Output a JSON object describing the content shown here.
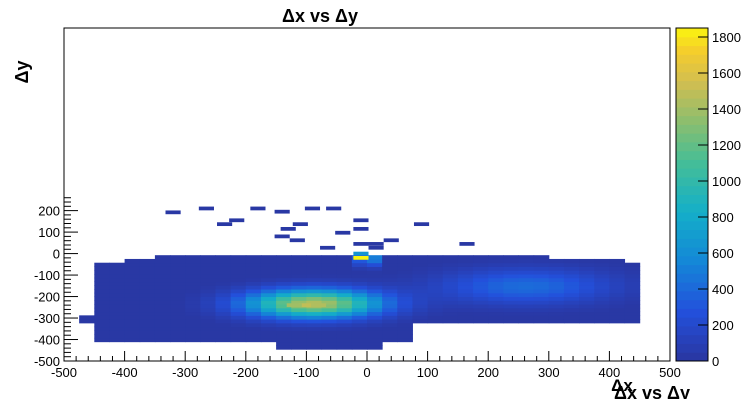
{
  "chart_data": {
    "type": "heatmap",
    "title": "Δx vs Δy",
    "xlabel": "Δx vs Δy",
    "xlabel_overlap": "Δx",
    "ylabel": "Δy",
    "xlim": [
      -500,
      500
    ],
    "ylim": [
      -500,
      1050
    ],
    "x_ticks": [
      -500,
      -400,
      -300,
      -200,
      -100,
      0,
      100,
      200,
      300,
      400,
      500
    ],
    "y_ticks": [
      -500,
      -400,
      -300,
      -200,
      -100,
      0,
      100,
      200
    ],
    "colorbar": {
      "min": 0,
      "max": 1850,
      "ticks": [
        0,
        200,
        400,
        600,
        800,
        1000,
        1200,
        1400,
        1600,
        1800
      ]
    },
    "bin_width": {
      "x": 25,
      "y": 17.5
    },
    "bins": [
      {
        "x": -320,
        "y": 192,
        "v": 8
      },
      {
        "x": -265,
        "y": 210,
        "v": 6
      },
      {
        "x": -180,
        "y": 210,
        "v": 5
      },
      {
        "x": -140,
        "y": 195,
        "v": 9
      },
      {
        "x": -90,
        "y": 210,
        "v": 7
      },
      {
        "x": -55,
        "y": 210,
        "v": 6
      },
      {
        "x": -215,
        "y": 155,
        "v": 6
      },
      {
        "x": -235,
        "y": 137,
        "v": 5
      },
      {
        "x": -110,
        "y": 137,
        "v": 7
      },
      {
        "x": -130,
        "y": 115,
        "v": 5
      },
      {
        "x": -10,
        "y": 155,
        "v": 5
      },
      {
        "x": 90,
        "y": 137,
        "v": 6
      },
      {
        "x": -40,
        "y": 97,
        "v": 6
      },
      {
        "x": -10,
        "y": 115,
        "v": 7
      },
      {
        "x": -140,
        "y": 80,
        "v": 8
      },
      {
        "x": -115,
        "y": 62,
        "v": 6
      },
      {
        "x": 40,
        "y": 62,
        "v": 7
      },
      {
        "x": -10,
        "y": 45,
        "v": 9
      },
      {
        "x": 15,
        "y": 45,
        "v": 5
      },
      {
        "x": 165,
        "y": 45,
        "v": 8
      },
      {
        "x": -65,
        "y": 27,
        "v": 6
      },
      {
        "x": 15,
        "y": 27,
        "v": 7
      },
      {
        "x": -10,
        "y": -20,
        "v": 1850
      },
      {
        "x": -10,
        "y": 0,
        "v": 650
      },
      {
        "x": -100,
        "y": -240,
        "v": 1500
      },
      {
        "x": -80,
        "y": -240,
        "v": 1450
      },
      {
        "x": -120,
        "y": -240,
        "v": 1400
      }
    ]
  }
}
